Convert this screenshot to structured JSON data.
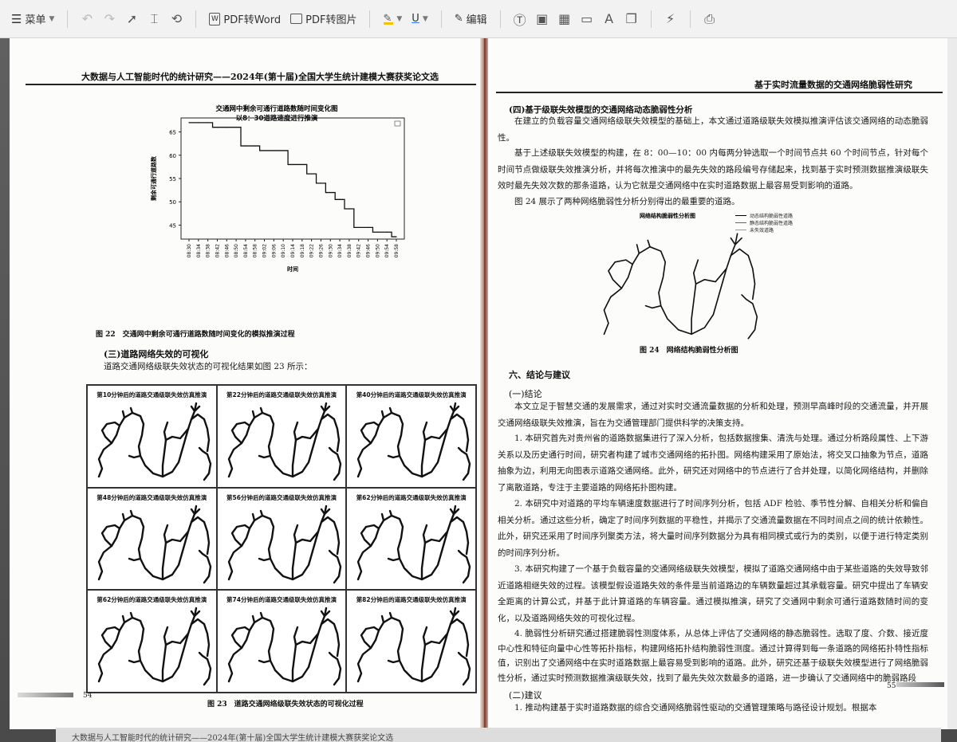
{
  "toolbar": {
    "menu_label": "菜单",
    "pdf_to_word": "PDF转Word",
    "pdf_to_image": "PDF转图片",
    "edit_label": "编辑"
  },
  "left_page": {
    "running_head": "大数据与人工智能时代的统计研究——2024年(第十届)全国大学生统计建模大赛获奖论文选",
    "chart_title_1": "交通网中剩余可通行道路数随时间变化图",
    "chart_title_2": "以8：30道路速度进行推演",
    "chart_ylabel": "剩余可通行道路数",
    "chart_xlabel": "时间",
    "fig22_caption": "图 22　交通网中剩余可通行道路数随时间变化的模拟推演过程",
    "section3_heading": "(三)道路网络失效的可视化",
    "section3_text": "道路交通网络级联失效状态的可视化结果如图 23 所示：",
    "grid_titles": [
      "第10分钟后的道路交通级联失效仿真推演",
      "第22分钟后的道路交通级联失效仿真推演",
      "第40分钟后的道路交通级联失效仿真推演",
      "第48分钟后的道路交通级联失效仿真推演",
      "第56分钟后的道路交通级联失效仿真推演",
      "第62分钟后的道路交通级联失效仿真推演",
      "第62分钟后的道路交通级联失效仿真推演",
      "第74分钟后的道路交通级联失效仿真推演",
      "第82分钟后的道路交通级联失效仿真推演"
    ],
    "fig23_caption": "图 23　道路交通网络级联失效状态的可视化过程",
    "page_number": "54"
  },
  "chart_data": {
    "type": "line",
    "title": "交通网中剩余可通行道路数 随时间变化图 以8：30道路速度进行推演",
    "xlabel": "时间",
    "ylabel": "剩余可通行道路数",
    "x": [
      "08:30",
      "08:34",
      "08:38",
      "08:42",
      "08:46",
      "08:50",
      "08:54",
      "08:58",
      "09:02",
      "09:06",
      "09:10",
      "09:14",
      "09:18",
      "09:22",
      "09:26",
      "09:30",
      "09:34",
      "09:38",
      "09:42",
      "09:46",
      "09:50",
      "09:54",
      "09:58"
    ],
    "series": [
      {
        "values": [
          67,
          67,
          67,
          66,
          66,
          66,
          62,
          62,
          61,
          61,
          61,
          58,
          58,
          56,
          54,
          52,
          50.5,
          48.5,
          44.5,
          44.5,
          43.5,
          43.5,
          42.5
        ]
      }
    ],
    "yticks": [
      45,
      50,
      55,
      60,
      65
    ],
    "ylim": [
      42,
      68
    ],
    "grid": false
  },
  "right_page": {
    "running_head": "基于实时流量数据的交通网络脆弱性研究",
    "sub4_heading": "(四)基于级联失效模型的交通网络动态脆弱性分析",
    "p1": "在建立的负载容量交通网络级联失效模型的基础上，本文通过道路级联失效模拟推演评估该交通网络的动态脆弱性。",
    "p2": "基于上述级联失效模型的构建，在 8：00—10：00 内每两分钟选取一个时间节点共 60 个时间节点，针对每个时间节点做级联失效推演分析，并将每次推演中的最先失效的路段编号存储起来，找到基于实时预测数据推演级联失效时最先失效次数的那条道路，认为它就是交通网络中在实时道路数据上最容易受到影响的道路。",
    "p3": "图 24 展示了两种网络脆弱性分析分别得出的最重要的道路。",
    "fig24_title": "网络结构脆弱性分析图",
    "fig24_legend": [
      "动态结构脆弱性道路",
      "静态结构脆弱性道路",
      "未失效道路"
    ],
    "fig24_caption": "图 24　网络结构脆弱性分析图",
    "sec6_heading": "六、结论与建议",
    "sub1_heading": "(一)结论",
    "c0": "本文立足于智慧交通的发展需求，通过对实时交通流量数据的分析和处理，预测早高峰时段的交通流量，并开展交通网络级联失效推演，旨在为交通管理部门提供科学的决策支持。",
    "c1": "1. 本研究首先对贵州省的道路数据集进行了深入分析，包括数据搜集、清洗与处理。通过分析路段属性、上下游关系以及历史通行时间，研究者构建了城市交通网络的拓扑图。网络构建采用了原始法，将交叉口抽象为节点，道路抽象为边，利用无向图表示道路交通网络。此外，研究还对网络中的节点进行了合并处理，以简化网络结构，并删除了离散道路，专注于主要道路的网络拓扑图构建。",
    "c2": "2. 本研究中对道路的平均车辆速度数据进行了时间序列分析，包括 ADF 检验、季节性分解、自相关分析和偏自相关分析。通过这些分析，确定了时间序列数据的平稳性，并揭示了交通流量数据在不同时间点之间的统计依赖性。此外，研究还采用了时间序列聚类方法，将大量时间序列数据分为具有相同模式或行为的类别，以便于进行特定类别的时间序列分析。",
    "c3": "3. 本研究构建了一个基于负载容量的交通网络级联失效模型，模拟了道路交通网络中由于某些道路的失效导致邻近道路相继失效的过程。该模型假设道路失效的条件是当前道路边的车辆数量超过其承载容量。研究中提出了车辆安全距离的计算公式，并基于此计算道路的车辆容量。通过模拟推演，研究了交通网中剩余可通行道路数随时间的变化，以及道路网络失效的可视化过程。",
    "c4": "4. 脆弱性分析研究通过搭建脆弱性测度体系，从总体上评估了交通网络的静态脆弱性。选取了度、介数、接近度中心性和特征向量中心性等拓扑指标，构建网络拓扑结构脆弱性测度。通过计算得到每一条道路的网络拓扑特性指标值，识别出了交通网络中在实时道路数据上最容易受到影响的道路。此外，研究还基于级联失效模型进行了网络脆弱性分析，通过实时预测数据推演级联失效，找到了最先失效次数最多的道路，进一步确认了交通网络中的脆弱路段",
    "sub2_heading": "(二)建议",
    "s1": "1. 推动构建基于实时道路数据的综合交通网络脆弱性驱动的交通管理策略与路径设计规划。根据本",
    "page_number": "55"
  },
  "bottom_ghost": "大数据与人工智能时代的统计研究——2024年(第十届)全国大学生统计建模大赛获奖论文选"
}
